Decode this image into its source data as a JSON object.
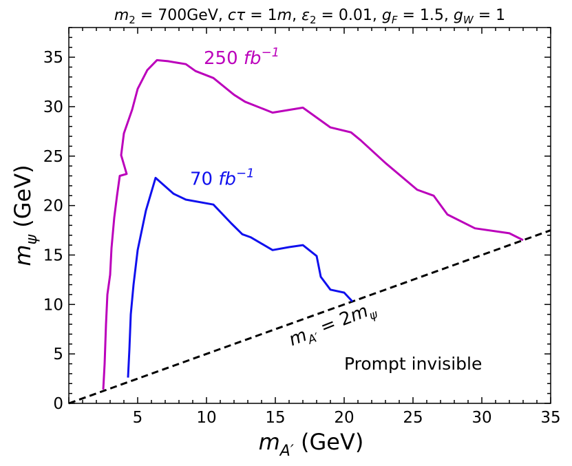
{
  "chart_data": {
    "type": "line",
    "title": {
      "m2": "m",
      "m2_sub": "2",
      "m2_val": " = 700GeV, ",
      "ctau": "cτ",
      "ctau_val": " = 1",
      "ctau_unit": "m",
      "sep1": ", ",
      "eps": "ε",
      "eps_sub": "2",
      "eps_val": " = 0.01, ",
      "gF": "g",
      "gF_sub": "F",
      "gF_val": " = 1.5, ",
      "gW": "g",
      "gW_sub": "W",
      "gW_val": " = 1"
    },
    "xlabel": {
      "sym": "m",
      "sub": "A′",
      "unit": " (GeV)"
    },
    "ylabel": {
      "sym": "m",
      "sub": "ψ",
      "unit": " (GeV)"
    },
    "xlim": [
      0,
      35
    ],
    "ylim": [
      0,
      38
    ],
    "xticks": [
      5,
      10,
      15,
      20,
      25,
      30,
      35
    ],
    "yticks": [
      0,
      5,
      10,
      15,
      20,
      25,
      30,
      35
    ],
    "series": [
      {
        "name": "250 fb-1",
        "label_num": "250",
        "label_unit": "fb",
        "label_exp": "−1",
        "color": "#bb00bb",
        "label_at": [
          9.8,
          34.3
        ],
        "x": [
          2.5,
          2.6,
          2.7,
          2.8,
          3.0,
          3.1,
          3.3,
          3.5,
          3.7,
          4.2,
          3.8,
          4.0,
          4.6,
          5.0,
          5.7,
          6.4,
          7.2,
          8.5,
          9.2,
          10.5,
          12.0,
          12.8,
          14.8,
          17.0,
          19.0,
          20.5,
          21.2,
          23.0,
          25.3,
          26.5,
          27.5,
          29.5,
          32.0,
          33.0
        ],
        "y": [
          1.4,
          4.0,
          8.0,
          11.0,
          13.0,
          15.7,
          18.8,
          21.0,
          23.0,
          23.2,
          25.1,
          27.3,
          29.7,
          31.8,
          33.7,
          34.7,
          34.6,
          34.3,
          33.6,
          32.9,
          31.2,
          30.5,
          29.4,
          29.9,
          27.9,
          27.4,
          26.6,
          24.3,
          21.6,
          21.0,
          19.1,
          17.7,
          17.2,
          16.5
        ]
      },
      {
        "name": "70 fb-1",
        "label_num": "70",
        "label_unit": "fb",
        "label_exp": "−1",
        "color": "#1010ee",
        "label_at": [
          8.8,
          22.1
        ],
        "x": [
          4.3,
          4.4,
          4.5,
          4.7,
          5.0,
          5.6,
          6.3,
          7.6,
          8.5,
          10.5,
          11.8,
          12.6,
          13.2,
          14.8,
          16.0,
          17.0,
          18.0,
          18.3,
          19.0,
          20.0,
          20.6
        ],
        "y": [
          2.6,
          5.5,
          9.0,
          12.0,
          15.5,
          19.5,
          22.8,
          21.2,
          20.6,
          20.1,
          18.2,
          17.1,
          16.8,
          15.5,
          15.8,
          16.0,
          14.9,
          12.8,
          11.5,
          11.2,
          10.3
        ]
      }
    ],
    "reference_line": {
      "name": "mA' = 2 m_psi",
      "slope": 0.5,
      "x": [
        0.0,
        35.0
      ],
      "y": [
        0.0,
        17.5
      ],
      "style": "dashed",
      "color": "#000000"
    },
    "annotations": {
      "diag_label_sym": "m",
      "diag_label_sub": "A′",
      "diag_label_eq": " = 2",
      "diag_label_m": "m",
      "diag_label_psi": "ψ",
      "diag_label_at": [
        16.2,
        5.8
      ],
      "diag_label_rotation": -21.5,
      "region_label": "Prompt invisible",
      "region_label_at": [
        20.0,
        3.4
      ]
    }
  }
}
